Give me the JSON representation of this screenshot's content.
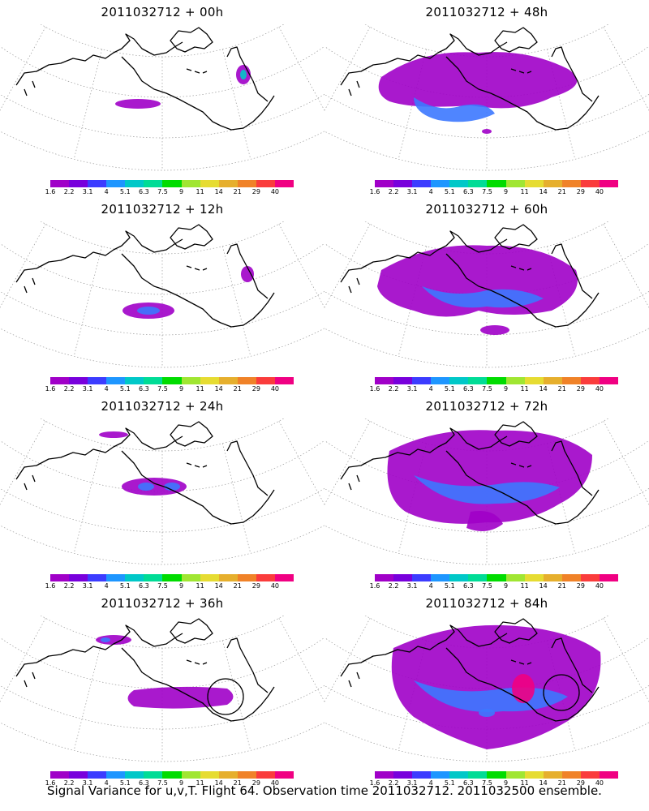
{
  "panels": [
    {
      "title": "2011032712 + 00h",
      "hour": 0
    },
    {
      "title": "2011032712 + 48h",
      "hour": 48
    },
    {
      "title": "2011032712 + 12h",
      "hour": 12
    },
    {
      "title": "2011032712 + 60h",
      "hour": 60
    },
    {
      "title": "2011032712 + 24h",
      "hour": 24
    },
    {
      "title": "2011032712 + 72h",
      "hour": 72
    },
    {
      "title": "2011032712 + 36h",
      "hour": 36
    },
    {
      "title": "2011032712 + 84h",
      "hour": 84
    }
  ],
  "colorbar": {
    "levels": [
      "1.6",
      "2.2",
      "3.1",
      "4",
      "5.1",
      "6.3",
      "7.5",
      "9",
      "11",
      "14",
      "21",
      "29",
      "40"
    ],
    "colors": [
      "#a000c8",
      "#7800dc",
      "#3c3cff",
      "#1e96ff",
      "#00c8c8",
      "#00dc96",
      "#00dc00",
      "#a0e632",
      "#e6dc32",
      "#e6af2d",
      "#f08228",
      "#fa3c3c",
      "#f00082"
    ]
  },
  "caption": "Signal Variance for u,v,T. Flight 64. Observation time 2011032712. 2011032500 ensemble."
}
